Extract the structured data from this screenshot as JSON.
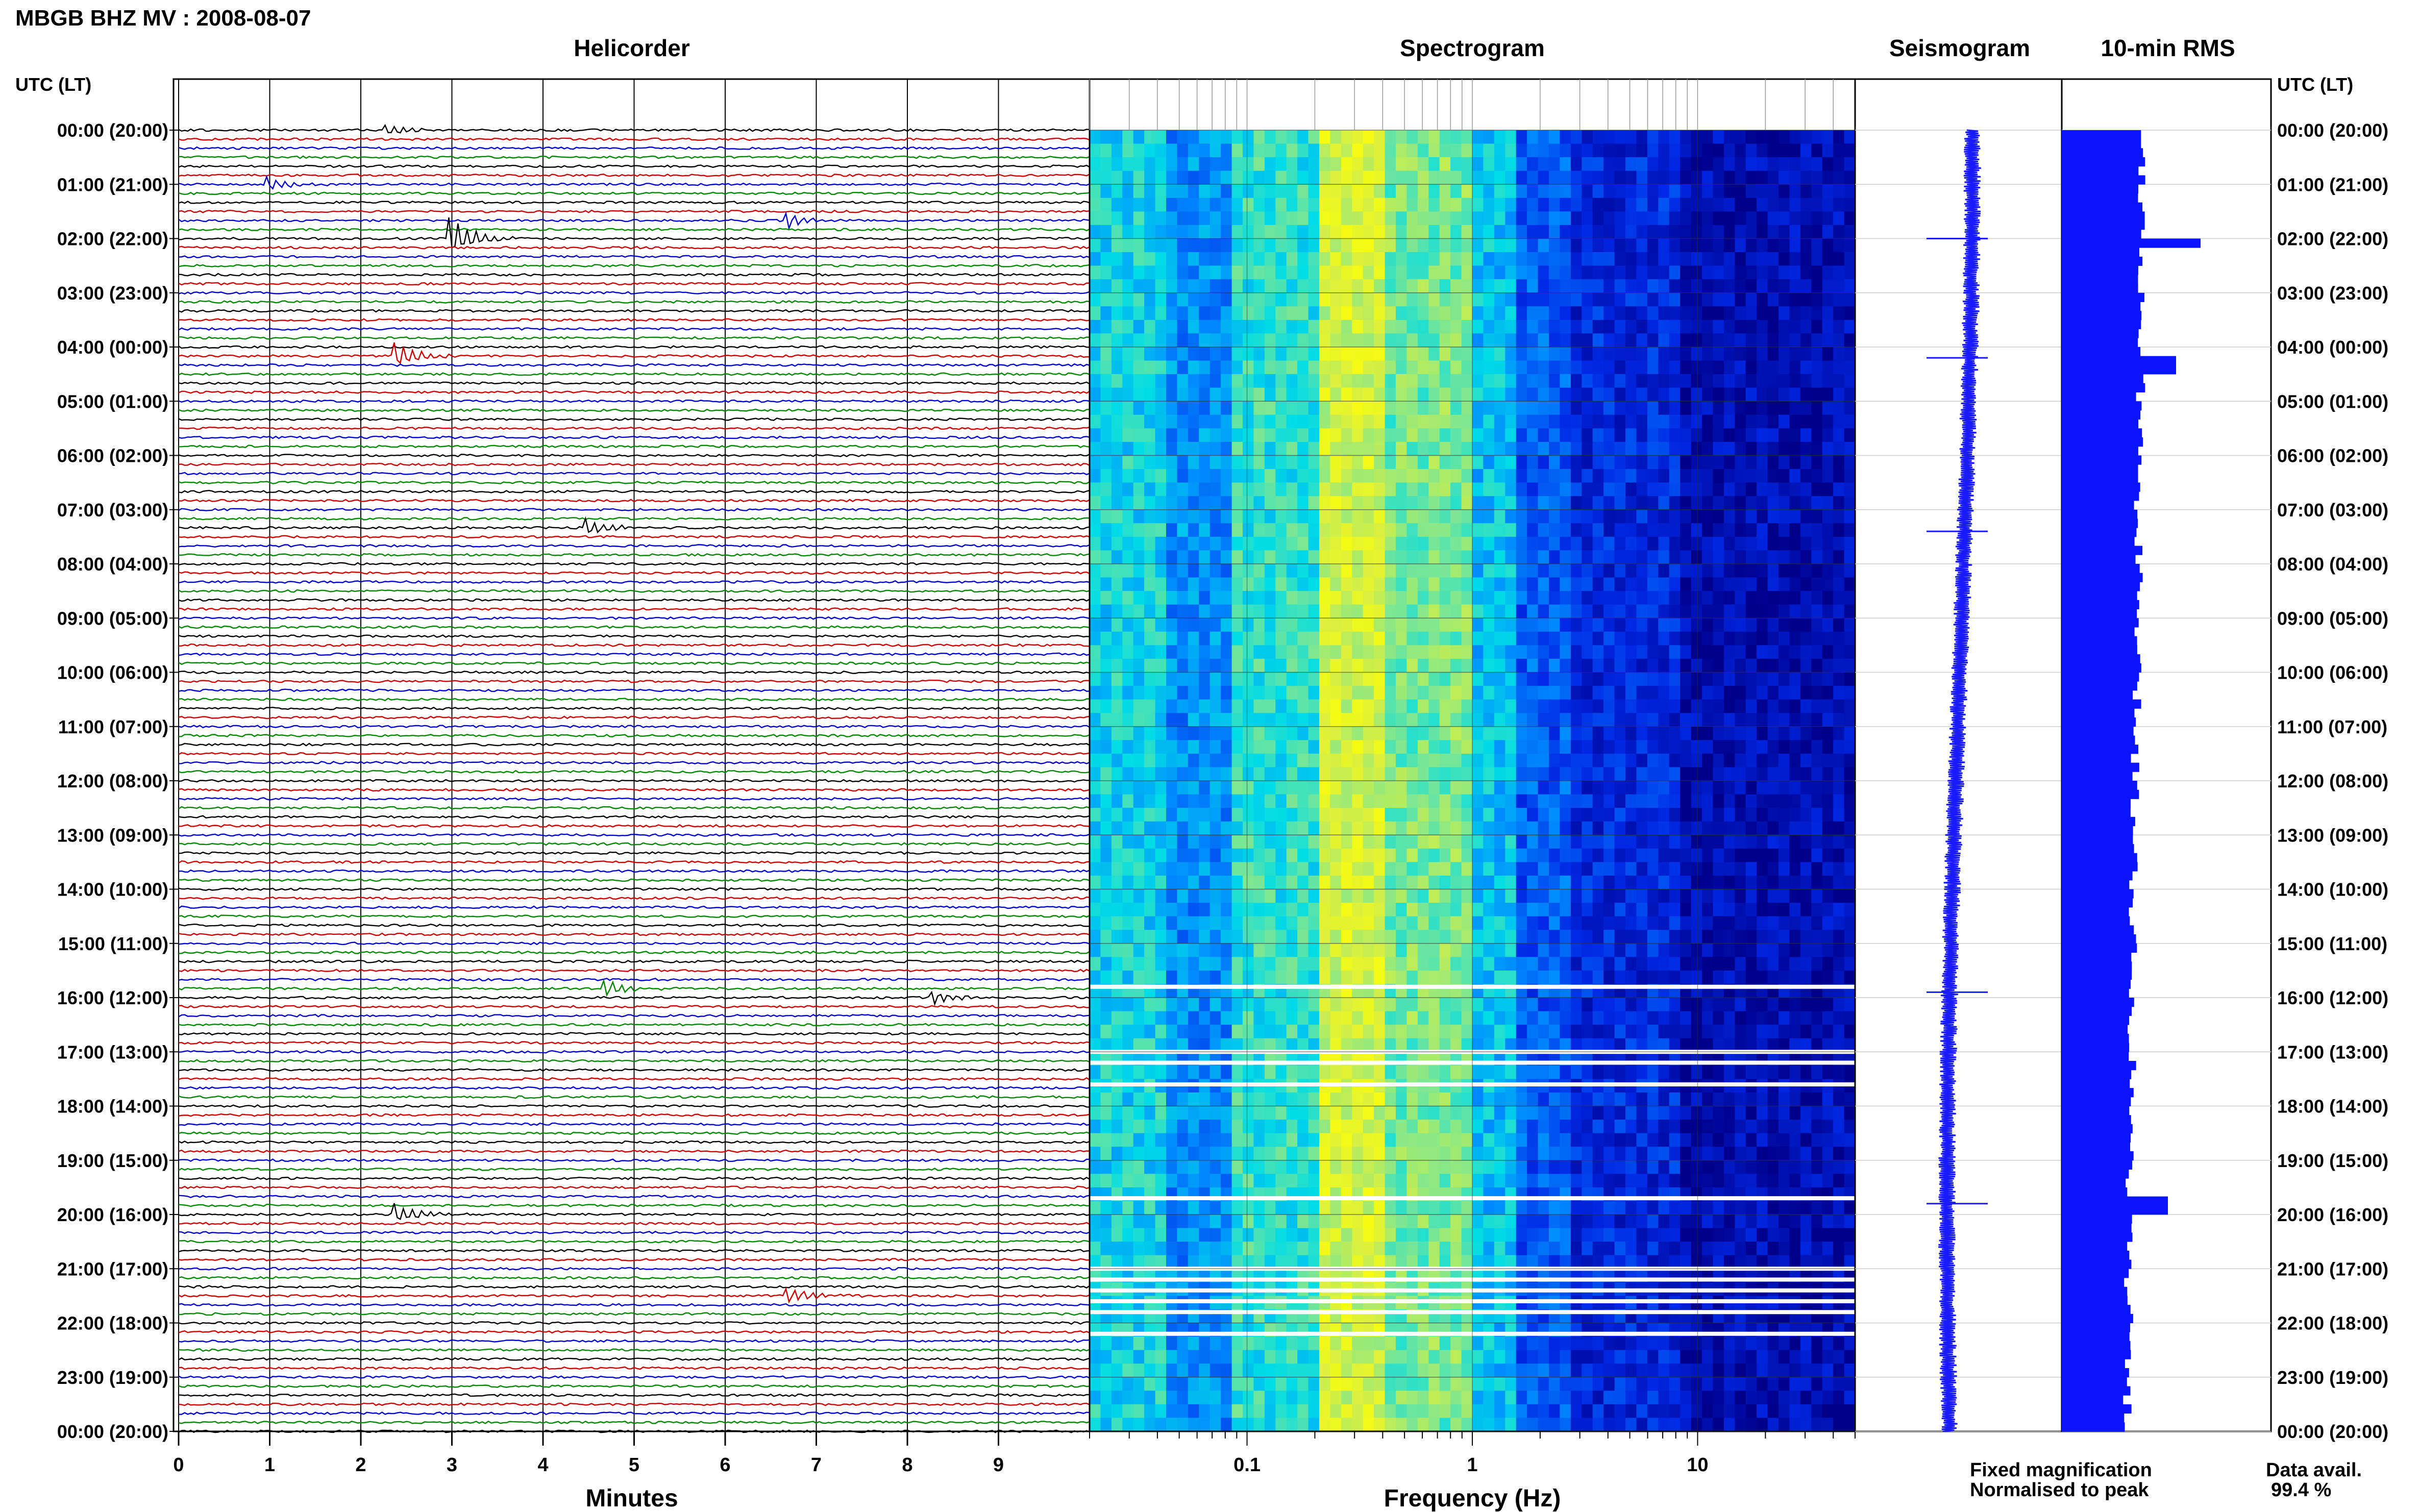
{
  "header": {
    "title": "MBGB BHZ MV : 2008-08-07"
  },
  "panels": {
    "helicorder": "Helicorder",
    "spectrogram": "Spectrogram",
    "seismogram": "Seismogram",
    "rms": "10-min RMS"
  },
  "axes": {
    "time_header": "UTC (LT)",
    "minutes_label": "Minutes",
    "frequency_label": "Frequency (Hz)"
  },
  "legend": {
    "fixed": "Fixed magnification",
    "normalised": "Normalised to peak",
    "fixed_color": "#0000ff",
    "normalised_color": "#ff0000"
  },
  "data_avail": {
    "label": "Data avail.",
    "value": "99.4 %"
  },
  "colors": {
    "trace_cycle": [
      "#000000",
      "#cc0000",
      "#0000cc",
      "#008800"
    ],
    "rms_bar": "#0a14ff",
    "spec_low": "#00008b",
    "spec_high": "#ffff00"
  },
  "chart_data": [
    {
      "type": "line",
      "title": "Helicorder",
      "xlabel": "Minutes",
      "x_ticks": [
        "0",
        "1",
        "2",
        "3",
        "4",
        "5",
        "6",
        "7",
        "8",
        "9"
      ],
      "xlim": [
        0,
        10
      ],
      "rows_per_hour": 6,
      "row_labels": [
        "00:00 (20:00)",
        "01:00 (21:00)",
        "02:00 (22:00)",
        "03:00 (23:00)",
        "04:00 (00:00)",
        "05:00 (01:00)",
        "06:00 (02:00)",
        "07:00 (03:00)",
        "08:00 (04:00)",
        "09:00 (05:00)",
        "10:00 (06:00)",
        "11:00 (07:00)",
        "12:00 (08:00)",
        "13:00 (09:00)",
        "14:00 (10:00)",
        "15:00 (11:00)",
        "16:00 (12:00)",
        "17:00 (13:00)",
        "18:00 (14:00)",
        "19:00 (15:00)",
        "20:00 (16:00)",
        "21:00 (17:00)",
        "22:00 (18:00)",
        "23:00 (19:00)",
        "00:00 (20:00)"
      ],
      "events": [
        {
          "hour": 0.0,
          "minute": 2.3,
          "amp": 1.5
        },
        {
          "hour": 1.0,
          "minute": 1.0,
          "amp": 2.0
        },
        {
          "hour": 1.6,
          "minute": 6.7,
          "amp": 2.5
        },
        {
          "hour": 2.0,
          "minute": 3.0,
          "amp": 6.0
        },
        {
          "hour": 4.1,
          "minute": 2.4,
          "amp": 4.0
        },
        {
          "hour": 7.3,
          "minute": 4.5,
          "amp": 2.5
        },
        {
          "hour": 15.8,
          "minute": 4.7,
          "amp": 2.5
        },
        {
          "hour": 16.0,
          "minute": 8.3,
          "amp": 2.0
        },
        {
          "hour": 20.0,
          "minute": 2.4,
          "amp": 3.0
        },
        {
          "hour": 21.5,
          "minute": 6.7,
          "amp": 2.5
        }
      ]
    },
    {
      "type": "heatmap",
      "title": "Spectrogram",
      "xlabel": "Frequency (Hz)",
      "x_scale": "log",
      "xlim": [
        0.02,
        50
      ],
      "x_ticks": [
        {
          "value": 0.1,
          "label": "0.1"
        },
        {
          "value": 1,
          "label": "1"
        },
        {
          "value": 10,
          "label": "10"
        }
      ],
      "data_gaps_hours": [
        15.8,
        17.0,
        17.2,
        17.6,
        19.7,
        21.0,
        21.2,
        21.4,
        21.6,
        21.8,
        22.2
      ],
      "ylim_hours": [
        0,
        24
      ]
    },
    {
      "type": "line",
      "title": "Seismogram",
      "spikes_hours": [
        2.0,
        4.2,
        7.4,
        15.9,
        19.8
      ]
    },
    {
      "type": "bar",
      "title": "10-min RMS",
      "ylim_hours": [
        0,
        24
      ],
      "peaks": [
        {
          "hour": 2.0,
          "value": 1.7
        },
        {
          "hour": 4.25,
          "value": 1.4
        },
        {
          "hour": 19.75,
          "value": 1.3
        }
      ],
      "baseline_start": 1.0,
      "baseline_end": 0.8
    }
  ]
}
